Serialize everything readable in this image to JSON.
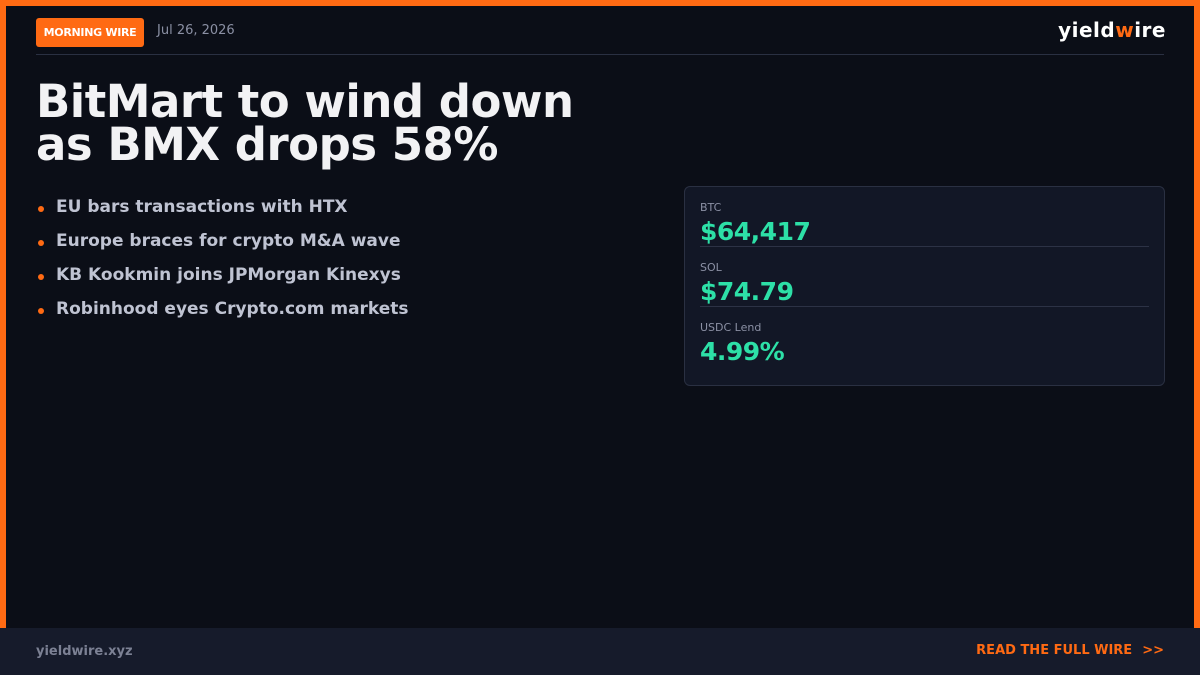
{
  "header": {
    "badge": "MORNING WIRE",
    "date": "Jul 26, 2026",
    "logo_prefix": "yield",
    "logo_accent": "w",
    "logo_suffix": "ire"
  },
  "headline": {
    "line1": "BitMart to wind down",
    "line2": "as BMX drops 58%"
  },
  "bullets": [
    "EU bars transactions with HTX",
    "Europe braces for crypto M&A wave",
    "KB Kookmin joins JPMorgan Kinexys",
    "Robinhood eyes Crypto.com markets"
  ],
  "prices": [
    {
      "label": "BTC",
      "value": "$64,417"
    },
    {
      "label": "SOL",
      "value": "$74.79"
    },
    {
      "label": "USDC Lend",
      "value": "4.99%"
    }
  ],
  "footer": {
    "url": "yieldwire.xyz",
    "cta": "READ THE FULL WIRE",
    "cta_icon": ">>"
  },
  "colors": {
    "accent": "#ff6a13",
    "positive": "#2de0a7",
    "background": "#0b0e17"
  }
}
